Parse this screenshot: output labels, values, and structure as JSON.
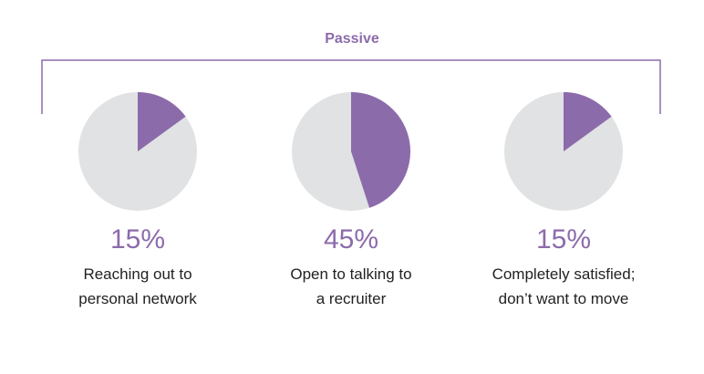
{
  "chart_data": {
    "type": "pie",
    "title": "Passive",
    "colors": {
      "highlight": "#8c6bab",
      "rest": "#e0e2e3"
    },
    "pies": [
      {
        "value": 15,
        "percent_label": "15%",
        "label_lines": [
          "Reaching out to",
          "personal network"
        ]
      },
      {
        "value": 45,
        "percent_label": "45%",
        "label_lines": [
          "Open to talking to",
          "a recruiter"
        ]
      },
      {
        "value": 15,
        "percent_label": "15%",
        "label_lines": [
          "Completely satisfied;",
          "don’t want to move"
        ]
      }
    ]
  }
}
